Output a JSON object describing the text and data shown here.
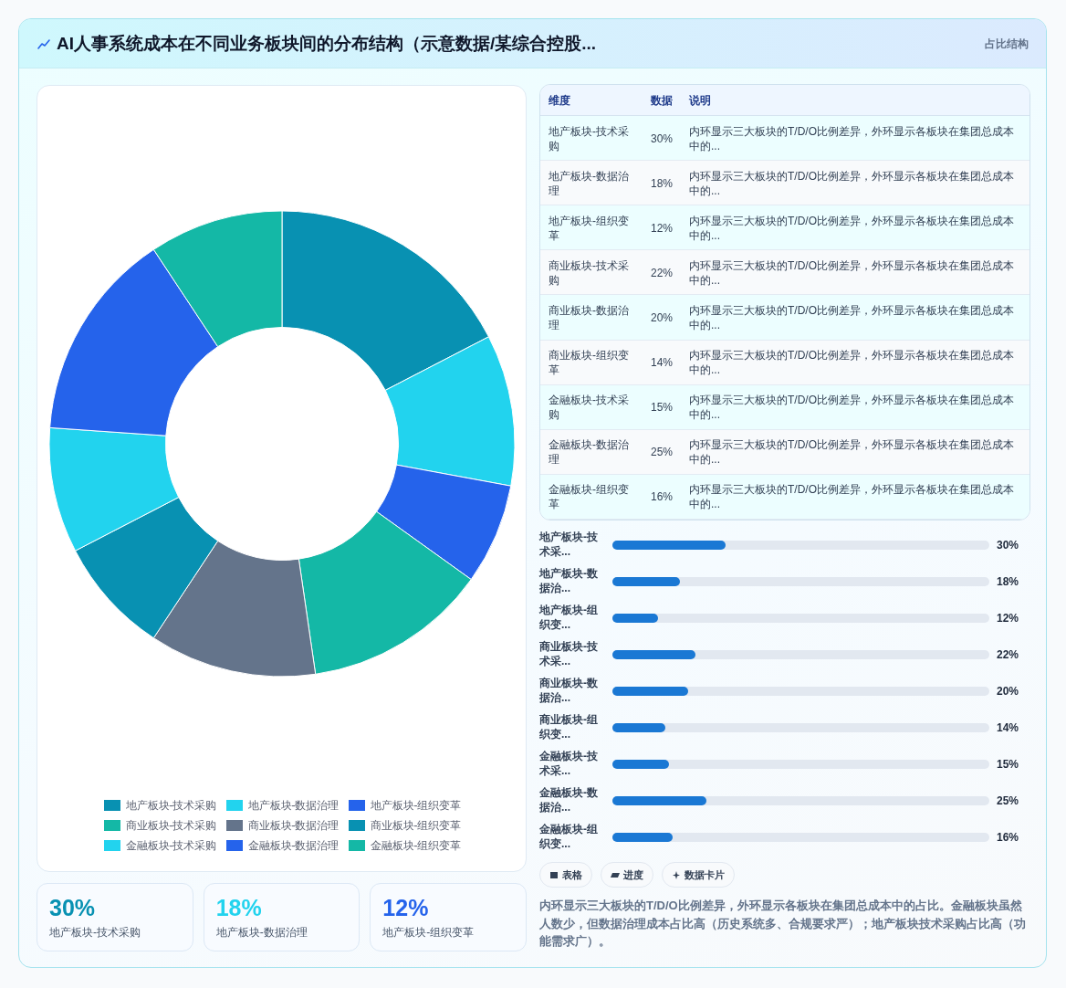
{
  "chart_data": [
    {
      "type": "donut",
      "title": "AI人事系统成本在不同业务板块间的分布结构（示意数据/某综合控股...",
      "annotations": [
        "占比结构"
      ],
      "categories": [
        "地产板块-技术采购",
        "地产板块-数据治理",
        "地产板块-组织变革",
        "商业板块-技术采购",
        "商业板块-数据治理",
        "商业板块-组织变革",
        "金融板块-技术采购",
        "金融板块-数据治理",
        "金融板块-组织变革"
      ],
      "values": [
        17.4,
        10.5,
        7.0,
        12.8,
        11.6,
        8.1,
        8.7,
        14.6,
        9.3
      ],
      "colors": [
        "#0891b2",
        "#22d3ee",
        "#2563eb",
        "#14b8a6",
        "#64748b",
        "#0891b2",
        "#22d3ee",
        "#2563eb",
        "#14b8a6"
      ],
      "legend": "bottom"
    },
    {
      "type": "other",
      "categories": [
        "地产板块-技术采购",
        "地产板块-数据治理",
        "地产板块-组织变革",
        "商业板块-技术采购",
        "商业板块-数据治理",
        "商业板块-组织变革",
        "金融板块-技术采购",
        "金融板块-数据治理",
        "金融板块-组织变革"
      ],
      "value_labels": [
        "30%",
        "18%",
        "12%",
        "22%",
        "20%",
        "14%",
        "15%",
        "25%",
        "16%"
      ],
      "annotations": [
        "维度",
        "数据",
        "说明",
        "内环显示三大板块的T/D/O比例差异，外环显示各板块在集团总成本中的...",
        "内环显示三大板块的T/D/O比例差异，外环显示各板块在集团总成本中的...",
        "内环显示三大板块的T/D/O比例差异，外环显示各板块在集团总成本中的...",
        "内环显示三大板块的T/D/O比例差异，外环显示各板块在集团总成本中的...",
        "内环显示三大板块的T/D/O比例差异，外环显示各板块在集团总成本中的...",
        "内环显示三大板块的T/D/O比例差异，外环显示各板块在集团总成本中的...",
        "内环显示三大板块的T/D/O比例差异，外环显示各板块在集团总成本中的...",
        "内环显示三大板块的T/D/O比例差异，外环显示各板块在集团总成本中的...",
        "内环显示三大板块的T/D/O比例差异，外环显示各板块在集团总成本中的..."
      ]
    },
    {
      "type": "bar",
      "orientation": "horizontal",
      "categories": [
        "地产板块-技术采...",
        "地产板块-数据治...",
        "地产板块-组织变...",
        "商业板块-技术采...",
        "商业板块-数据治...",
        "商业板块-组织变...",
        "金融板块-技术采...",
        "金融板块-数据治...",
        "金融板块-组织变..."
      ],
      "values": [
        30,
        18,
        12,
        22,
        20,
        14,
        15,
        25,
        16
      ],
      "value_labels": [
        "30%",
        "18%",
        "12%",
        "22%",
        "20%",
        "14%",
        "15%",
        "25%",
        "16%"
      ],
      "color": "#1a78d4"
    },
    {
      "type": "other",
      "categories": [
        "地产板块-技术采购",
        "地产板块-数据治理",
        "地产板块-组织变革"
      ],
      "value_labels": [
        "30%",
        "18%",
        "12%"
      ]
    },
    {
      "type": "other",
      "annotations": [
        "表格",
        "进度",
        "数据卡片",
        "内环显示三大板块的T/D/O比例差异，外环显示各板块在集团总成本中的占比。金融板块虽然人数少，但数据治理成本占比高（历史系统多、合规要求严）；地产板块技术采购占比高（功能需求广）。"
      ]
    }
  ]
}
